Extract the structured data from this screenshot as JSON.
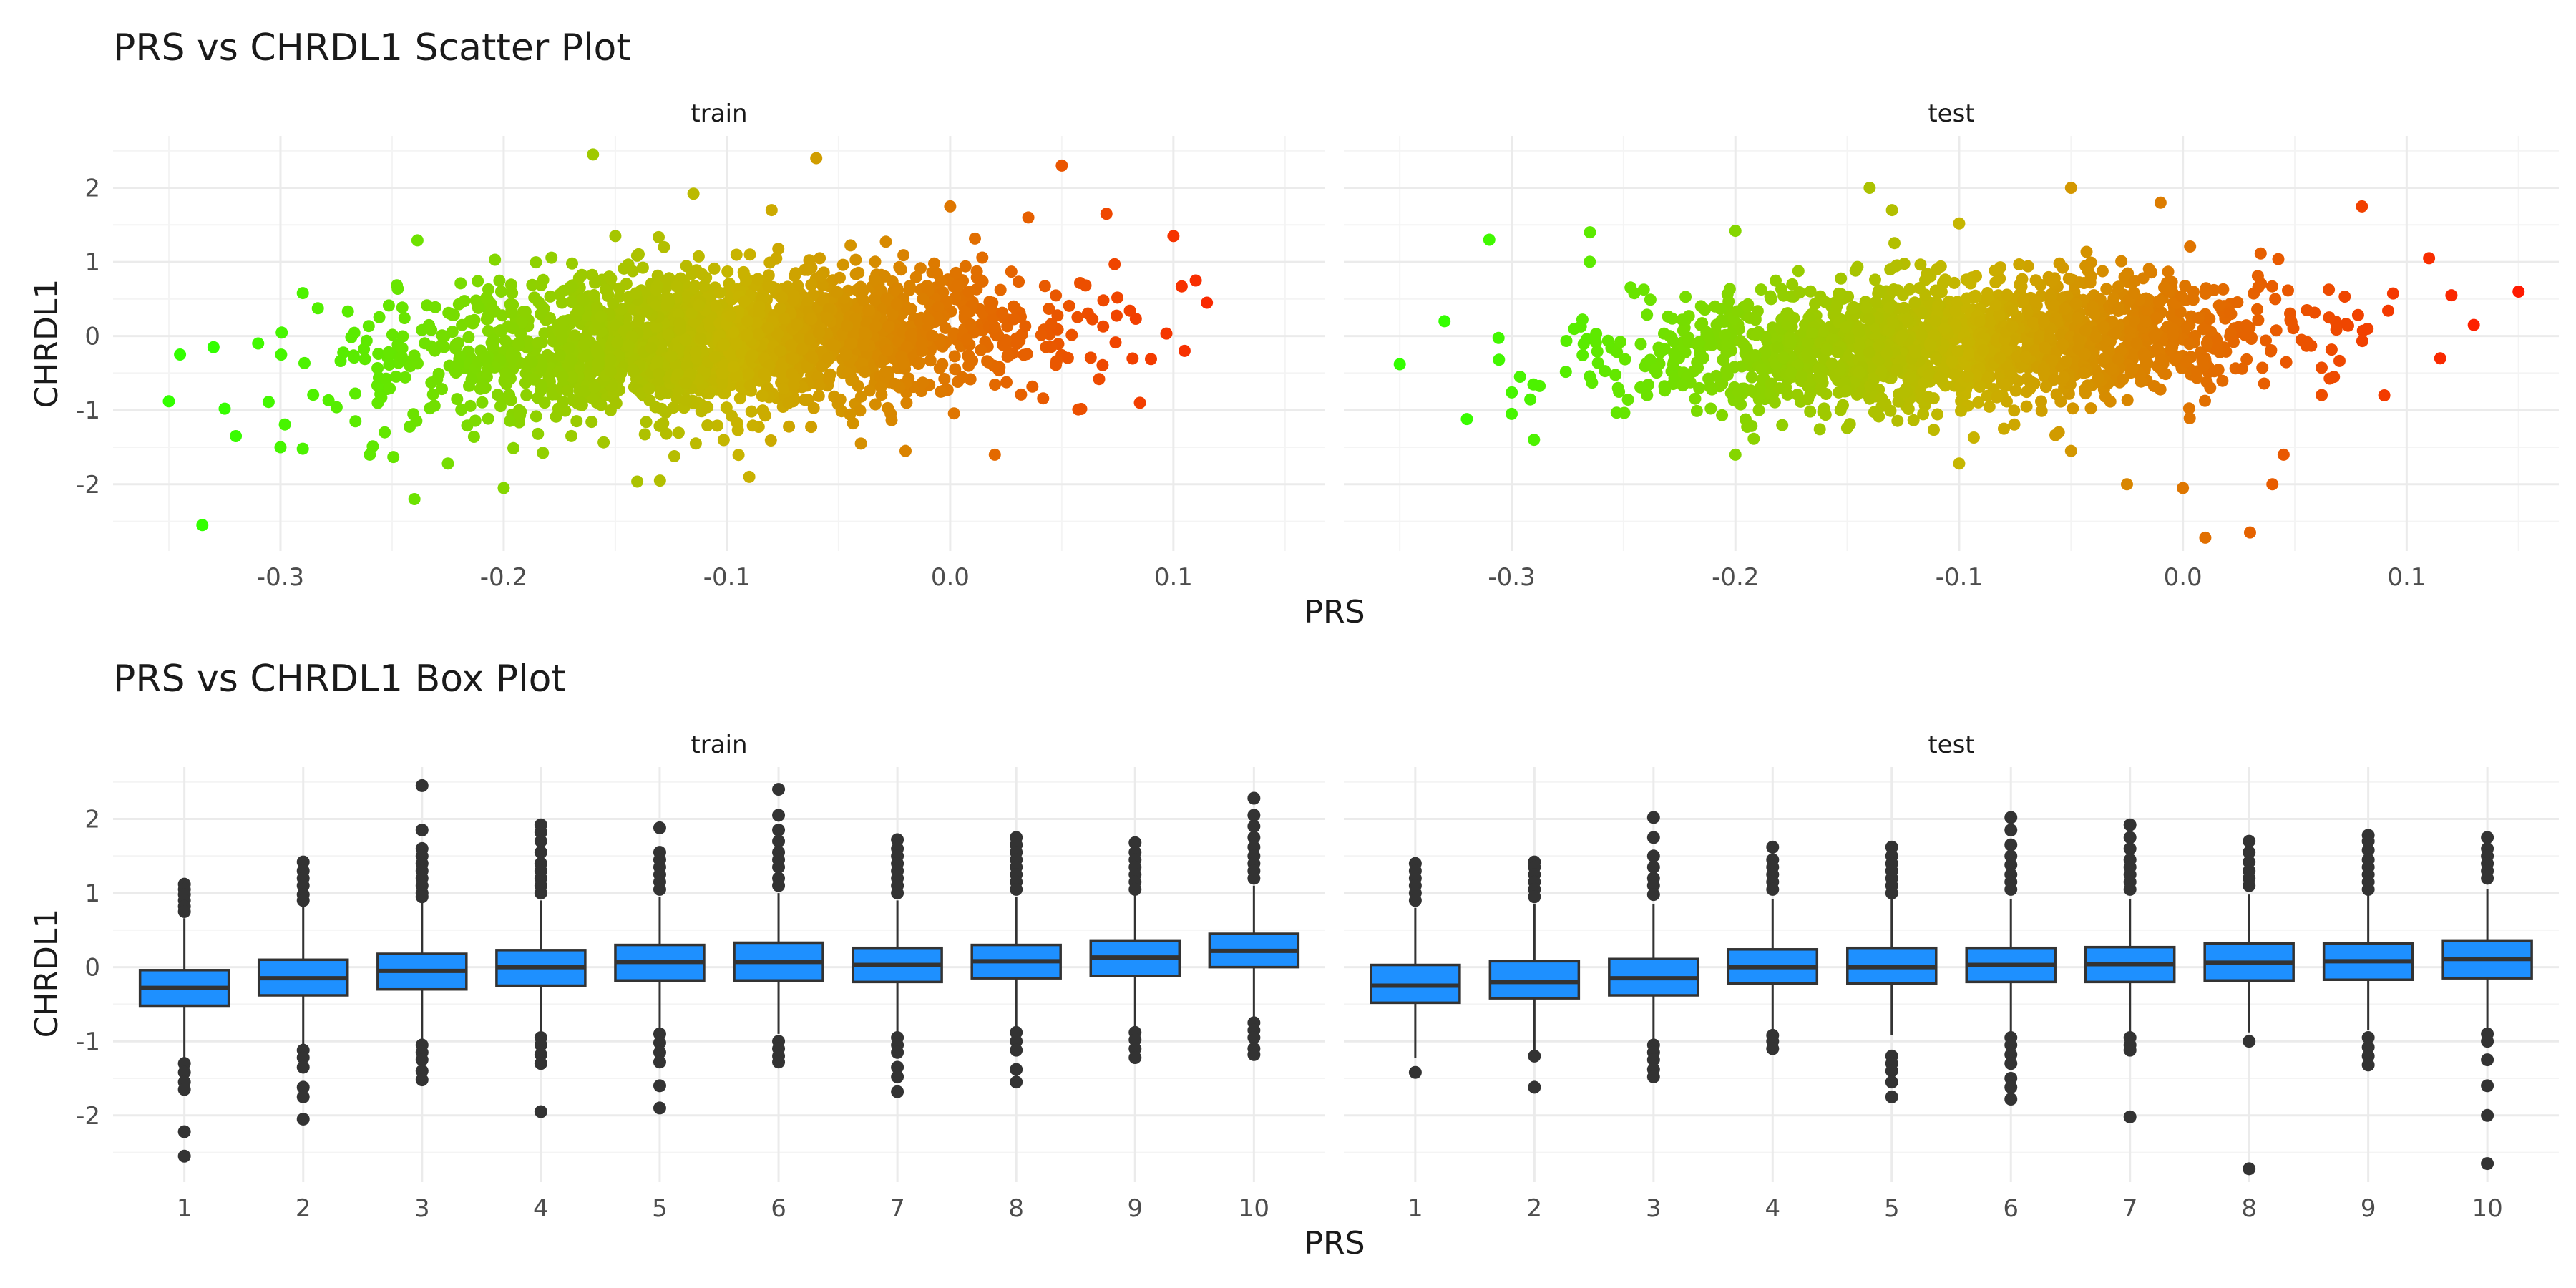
{
  "colors": {
    "low": "#33ff00",
    "mid": "#c8b400",
    "high": "#ff1a00",
    "box_fill": "#1e90ff",
    "box_line": "#333333",
    "outlier": "#333333",
    "grid": "#ebebeb"
  },
  "chart_data": [
    {
      "type": "scatter",
      "title": "PRS vs CHRDL1 Scatter Plot",
      "xlabel": "PRS",
      "ylabel": "CHRDL1",
      "xlim": [
        -0.375,
        0.168
      ],
      "ylim": [
        -2.9,
        2.7
      ],
      "x_ticks": [
        -0.3,
        -0.2,
        -0.1,
        0.0,
        0.1
      ],
      "x_tick_labels": [
        "-0.3",
        "-0.2",
        "-0.1",
        "0.0",
        "0.1"
      ],
      "y_ticks": [
        -2,
        -1,
        0,
        1,
        2
      ],
      "y_tick_labels": [
        "-2",
        "-1",
        "0",
        "1",
        "2"
      ],
      "color_scale": {
        "by": "PRS",
        "low": "#33ff00",
        "high": "#ff1a00"
      },
      "facets": [
        {
          "name": "train",
          "density": {
            "x_range": [
              -0.31,
              0.11
            ],
            "center": -0.1,
            "spread": 0.07,
            "slope": 1.6,
            "intercept": 0.07,
            "noise_sd": 0.45,
            "n": 2200
          },
          "points": [
            {
              "x": -0.35,
              "y": -0.88
            },
            {
              "x": -0.345,
              "y": -0.25
            },
            {
              "x": -0.335,
              "y": -2.55
            },
            {
              "x": -0.33,
              "y": -0.15
            },
            {
              "x": -0.325,
              "y": -0.98
            },
            {
              "x": -0.32,
              "y": -1.35
            },
            {
              "x": -0.31,
              "y": -0.1
            },
            {
              "x": -0.3,
              "y": -1.5
            },
            {
              "x": -0.29,
              "y": 0.58
            },
            {
              "x": -0.29,
              "y": -1.52
            },
            {
              "x": -0.26,
              "y": -1.6
            },
            {
              "x": -0.24,
              "y": -2.2
            },
            {
              "x": -0.225,
              "y": -1.72
            },
            {
              "x": -0.2,
              "y": -2.05
            },
            {
              "x": -0.16,
              "y": 2.45
            },
            {
              "x": -0.15,
              "y": 1.35
            },
            {
              "x": -0.13,
              "y": -1.95
            },
            {
              "x": -0.115,
              "y": 1.92
            },
            {
              "x": -0.09,
              "y": -1.9
            },
            {
              "x": -0.08,
              "y": 1.7
            },
            {
              "x": -0.06,
              "y": 2.4
            },
            {
              "x": -0.04,
              "y": -1.45
            },
            {
              "x": -0.02,
              "y": -1.55
            },
            {
              "x": 0.0,
              "y": 1.75
            },
            {
              "x": 0.02,
              "y": -1.6
            },
            {
              "x": 0.035,
              "y": 1.6
            },
            {
              "x": 0.05,
              "y": 2.3
            },
            {
              "x": 0.07,
              "y": 1.65
            },
            {
              "x": 0.085,
              "y": -0.9
            },
            {
              "x": 0.1,
              "y": 1.35
            },
            {
              "x": 0.11,
              "y": 0.75
            },
            {
              "x": 0.115,
              "y": 0.45
            },
            {
              "x": 0.105,
              "y": -0.2
            }
          ]
        },
        {
          "name": "test",
          "density": {
            "x_range": [
              -0.31,
              0.095
            ],
            "center": -0.1,
            "spread": 0.07,
            "slope": 1.5,
            "intercept": 0.06,
            "noise_sd": 0.42,
            "n": 1800
          },
          "points": [
            {
              "x": -0.35,
              "y": -0.38
            },
            {
              "x": -0.33,
              "y": 0.2
            },
            {
              "x": -0.32,
              "y": -1.12
            },
            {
              "x": -0.31,
              "y": 1.3
            },
            {
              "x": -0.3,
              "y": -1.05
            },
            {
              "x": -0.29,
              "y": -1.4
            },
            {
              "x": -0.265,
              "y": 1.4
            },
            {
              "x": -0.2,
              "y": -1.6
            },
            {
              "x": -0.2,
              "y": 1.42
            },
            {
              "x": -0.14,
              "y": 2.0
            },
            {
              "x": -0.13,
              "y": 1.7
            },
            {
              "x": -0.1,
              "y": 1.52
            },
            {
              "x": -0.1,
              "y": -1.72
            },
            {
              "x": -0.08,
              "y": -1.25
            },
            {
              "x": -0.05,
              "y": 2.0
            },
            {
              "x": -0.05,
              "y": -1.55
            },
            {
              "x": -0.025,
              "y": -2.0
            },
            {
              "x": -0.01,
              "y": 1.8
            },
            {
              "x": 0.0,
              "y": -2.05
            },
            {
              "x": 0.01,
              "y": -2.72
            },
            {
              "x": 0.03,
              "y": -2.65
            },
            {
              "x": 0.04,
              "y": -2.0
            },
            {
              "x": 0.045,
              "y": -1.6
            },
            {
              "x": 0.08,
              "y": 1.75
            },
            {
              "x": 0.09,
              "y": -0.8
            },
            {
              "x": 0.11,
              "y": 1.05
            },
            {
              "x": 0.115,
              "y": -0.3
            },
            {
              "x": 0.12,
              "y": 0.55
            },
            {
              "x": 0.13,
              "y": 0.15
            },
            {
              "x": 0.15,
              "y": 0.6
            }
          ]
        }
      ]
    },
    {
      "type": "box",
      "title": "PRS vs CHRDL1 Box Plot",
      "xlabel": "PRS",
      "ylabel": "CHRDL1",
      "categories": [
        "1",
        "2",
        "3",
        "4",
        "5",
        "6",
        "7",
        "8",
        "9",
        "10"
      ],
      "ylim": [
        -2.9,
        2.7
      ],
      "y_ticks": [
        -2,
        -1,
        0,
        1,
        2
      ],
      "y_tick_labels": [
        "-2",
        "-1",
        "0",
        "1",
        "2"
      ],
      "facets": [
        {
          "name": "train",
          "boxes": [
            {
              "q1": -0.52,
              "median": -0.28,
              "q3": -0.04,
              "whisker_low": -1.22,
              "whisker_high": 0.66,
              "outliers": [
                1.12,
                1.05,
                0.98,
                0.9,
                0.82,
                0.75,
                -1.3,
                -1.42,
                -1.55,
                -1.65,
                -2.22,
                -2.55
              ]
            },
            {
              "q1": -0.38,
              "median": -0.15,
              "q3": 0.1,
              "whisker_low": -1.05,
              "whisker_high": 0.82,
              "outliers": [
                1.42,
                1.3,
                1.2,
                1.1,
                0.98,
                0.9,
                -1.12,
                -1.22,
                -1.35,
                -1.62,
                -1.75,
                -2.05
              ]
            },
            {
              "q1": -0.3,
              "median": -0.05,
              "q3": 0.18,
              "whisker_low": -0.98,
              "whisker_high": 0.88,
              "outliers": [
                2.45,
                1.85,
                1.6,
                1.5,
                1.4,
                1.3,
                1.2,
                1.1,
                1.0,
                0.95,
                -1.05,
                -1.15,
                -1.25,
                -1.4,
                -1.52
              ]
            },
            {
              "q1": -0.25,
              "median": 0.0,
              "q3": 0.23,
              "whisker_low": -0.88,
              "whisker_high": 0.9,
              "outliers": [
                1.92,
                1.82,
                1.7,
                1.55,
                1.4,
                1.3,
                1.2,
                1.1,
                1.0,
                -0.95,
                -1.05,
                -1.18,
                -1.3,
                -1.95
              ]
            },
            {
              "q1": -0.18,
              "median": 0.07,
              "q3": 0.3,
              "whisker_low": -0.85,
              "whisker_high": 0.95,
              "outliers": [
                1.88,
                1.55,
                1.45,
                1.35,
                1.25,
                1.15,
                1.05,
                -0.9,
                -1.02,
                -1.15,
                -1.28,
                -1.6,
                -1.9
              ]
            },
            {
              "q1": -0.18,
              "median": 0.07,
              "q3": 0.33,
              "whisker_low": -0.9,
              "whisker_high": 1.0,
              "outliers": [
                2.4,
                2.05,
                1.85,
                1.7,
                1.55,
                1.45,
                1.35,
                1.2,
                1.1,
                -1.0,
                -1.1,
                -1.2,
                -1.28
              ]
            },
            {
              "q1": -0.2,
              "median": 0.03,
              "q3": 0.26,
              "whisker_low": -0.88,
              "whisker_high": 0.9,
              "outliers": [
                1.72,
                1.6,
                1.5,
                1.4,
                1.3,
                1.2,
                1.1,
                1.0,
                -0.95,
                -1.05,
                -1.15,
                -1.35,
                -1.48,
                -1.68
              ]
            },
            {
              "q1": -0.15,
              "median": 0.08,
              "q3": 0.3,
              "whisker_low": -0.85,
              "whisker_high": 0.95,
              "outliers": [
                1.75,
                1.65,
                1.55,
                1.45,
                1.35,
                1.25,
                1.15,
                1.05,
                -0.88,
                -1.0,
                -1.12,
                -1.38,
                -1.55
              ]
            },
            {
              "q1": -0.12,
              "median": 0.13,
              "q3": 0.36,
              "whisker_low": -0.82,
              "whisker_high": 1.0,
              "outliers": [
                1.68,
                1.55,
                1.45,
                1.35,
                1.25,
                1.15,
                1.05,
                -0.88,
                -0.98,
                -1.1,
                -1.22
              ]
            },
            {
              "q1": 0.0,
              "median": 0.22,
              "q3": 0.45,
              "whisker_low": -0.68,
              "whisker_high": 1.1,
              "outliers": [
                2.28,
                2.05,
                1.9,
                1.75,
                1.62,
                1.5,
                1.4,
                1.3,
                1.2,
                -0.75,
                -0.85,
                -0.95,
                -1.1,
                -1.18
              ]
            }
          ]
        },
        {
          "name": "test",
          "boxes": [
            {
              "q1": -0.48,
              "median": -0.25,
              "q3": 0.03,
              "whisker_low": -1.22,
              "whisker_high": 0.8,
              "outliers": [
                1.4,
                1.3,
                1.2,
                1.1,
                1.0,
                0.9,
                -1.42
              ]
            },
            {
              "q1": -0.42,
              "median": -0.2,
              "q3": 0.08,
              "whisker_low": -1.15,
              "whisker_high": 0.85,
              "outliers": [
                1.42,
                1.35,
                1.25,
                1.15,
                1.05,
                0.95,
                -1.2,
                -1.62
              ]
            },
            {
              "q1": -0.38,
              "median": -0.15,
              "q3": 0.11,
              "whisker_low": -0.98,
              "whisker_high": 0.85,
              "outliers": [
                2.02,
                1.75,
                1.5,
                1.35,
                1.2,
                1.1,
                0.98,
                -1.05,
                -1.15,
                -1.25,
                -1.38,
                -1.48
              ]
            },
            {
              "q1": -0.22,
              "median": 0.0,
              "q3": 0.24,
              "whisker_low": -0.88,
              "whisker_high": 0.92,
              "outliers": [
                1.62,
                1.45,
                1.35,
                1.25,
                1.15,
                1.05,
                -0.92,
                -1.0,
                -1.1
              ]
            },
            {
              "q1": -0.22,
              "median": 0.0,
              "q3": 0.26,
              "whisker_low": -0.92,
              "whisker_high": 0.92,
              "outliers": [
                1.62,
                1.5,
                1.4,
                1.3,
                1.2,
                1.1,
                1.0,
                -1.2,
                -1.3,
                -1.4,
                -1.55,
                -1.75
              ]
            },
            {
              "q1": -0.2,
              "median": 0.03,
              "q3": 0.26,
              "whisker_low": -0.88,
              "whisker_high": 0.92,
              "outliers": [
                2.02,
                1.85,
                1.65,
                1.5,
                1.38,
                1.25,
                1.15,
                1.05,
                -0.95,
                -1.05,
                -1.18,
                -1.3,
                -1.5,
                -1.62,
                -1.78
              ]
            },
            {
              "q1": -0.2,
              "median": 0.04,
              "q3": 0.27,
              "whisker_low": -0.9,
              "whisker_high": 0.92,
              "outliers": [
                1.92,
                1.75,
                1.6,
                1.45,
                1.35,
                1.25,
                1.15,
                1.05,
                -0.95,
                -1.05,
                -1.12,
                -2.02
              ]
            },
            {
              "q1": -0.18,
              "median": 0.06,
              "q3": 0.32,
              "whisker_low": -0.88,
              "whisker_high": 0.98,
              "outliers": [
                1.7,
                1.55,
                1.42,
                1.3,
                1.2,
                1.1,
                -1.0,
                -2.72
              ]
            },
            {
              "q1": -0.17,
              "median": 0.08,
              "q3": 0.32,
              "whisker_low": -0.85,
              "whisker_high": 1.0,
              "outliers": [
                1.78,
                1.7,
                1.58,
                1.45,
                1.35,
                1.25,
                1.15,
                1.05,
                -0.95,
                -1.08,
                -1.2,
                -1.32
              ]
            },
            {
              "q1": -0.15,
              "median": 0.11,
              "q3": 0.36,
              "whisker_low": -0.82,
              "whisker_high": 1.05,
              "outliers": [
                1.75,
                1.6,
                1.5,
                1.4,
                1.3,
                1.2,
                -0.9,
                -1.0,
                -1.25,
                -1.6,
                -2.0,
                -2.65
              ]
            }
          ]
        }
      ]
    }
  ]
}
